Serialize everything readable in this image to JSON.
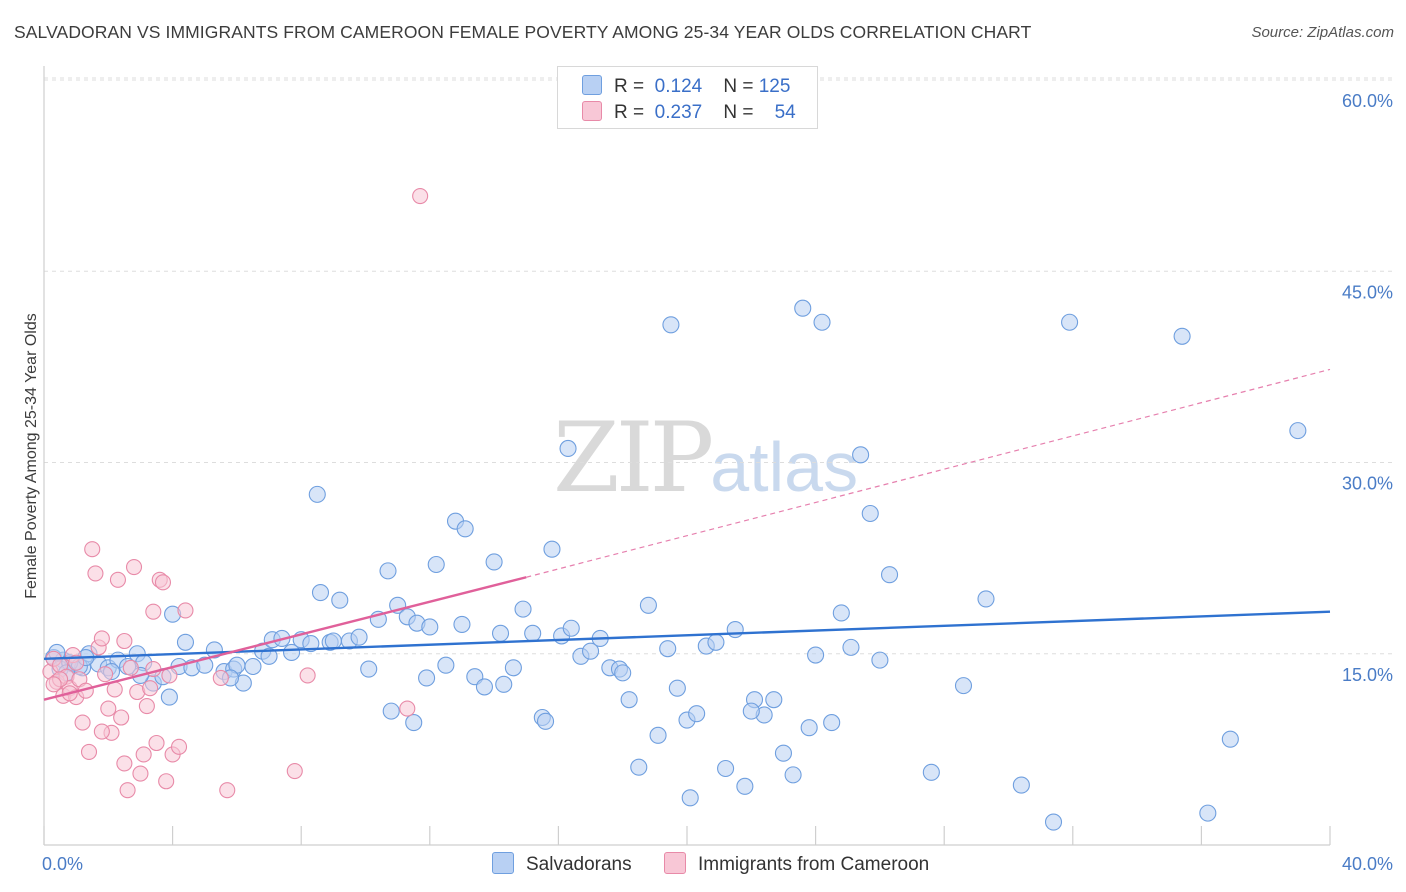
{
  "title": "SALVADORAN VS IMMIGRANTS FROM CAMEROON FEMALE POVERTY AMONG 25-34 YEAR OLDS CORRELATION CHART",
  "source": "Source: ZipAtlas.com",
  "watermark": {
    "zip": "ZIP",
    "atlas": "atlas"
  },
  "legend": {
    "r_label": "R =",
    "n_label": "N =",
    "rows": [
      {
        "r": "0.124",
        "n": "125"
      },
      {
        "r": "0.237",
        "n": "54"
      }
    ]
  },
  "bottom_legend": [
    {
      "label": "Salvadorans"
    },
    {
      "label": "Immigrants from Cameroon"
    }
  ],
  "colors": {
    "blue_fill": "#b8d0f3",
    "blue_stroke": "#6f9fdf",
    "blue_line": "#2f72d0",
    "pink_fill": "#f8c7d6",
    "pink_stroke": "#e88aa8",
    "pink_line": "#e0609a",
    "grid": "#dddddd",
    "axis": "#cfcfcf"
  },
  "chart_data": {
    "type": "scatter",
    "title": "SALVADORAN VS IMMIGRANTS FROM CAMEROON FEMALE POVERTY AMONG 25-34 YEAR OLDS CORRELATION CHART",
    "xlabel": "",
    "ylabel": "Female Poverty Among 25-34 Year Olds",
    "xlim": [
      0,
      40
    ],
    "ylim": [
      0,
      60
    ],
    "x_tick_labels": [
      "0.0%",
      "40.0%"
    ],
    "y_ticks": [
      15,
      30,
      45,
      60
    ],
    "y_tick_labels": [
      "15.0%",
      "30.0%",
      "45.0%",
      "60.0%"
    ],
    "grid": true,
    "series": [
      {
        "name": "Salvadorans",
        "R": 0.124,
        "N": 125,
        "trend": {
          "x0": 0,
          "y0": 14.6,
          "x1": 40,
          "y1": 18.3
        },
        "points": [
          [
            0.3,
            14.7
          ],
          [
            0.6,
            14.5
          ],
          [
            0.9,
            14.2
          ],
          [
            1.2,
            13.9
          ],
          [
            0.5,
            13.8
          ],
          [
            0.8,
            14.3
          ],
          [
            1.1,
            14.0
          ],
          [
            1.4,
            15.0
          ],
          [
            1.7,
            14.2
          ],
          [
            2.0,
            13.9
          ],
          [
            2.3,
            14.5
          ],
          [
            2.6,
            14.0
          ],
          [
            2.9,
            15.0
          ],
          [
            3.1,
            14.3
          ],
          [
            3.4,
            12.7
          ],
          [
            3.7,
            13.2
          ],
          [
            3.9,
            11.6
          ],
          [
            4.2,
            14.0
          ],
          [
            4.6,
            13.9
          ],
          [
            4.4,
            15.9
          ],
          [
            5.0,
            14.1
          ],
          [
            5.3,
            15.3
          ],
          [
            5.6,
            13.6
          ],
          [
            5.9,
            13.8
          ],
          [
            6.2,
            12.7
          ],
          [
            6.5,
            14.0
          ],
          [
            6.8,
            15.2
          ],
          [
            7.1,
            16.1
          ],
          [
            7.4,
            16.2
          ],
          [
            7.7,
            15.1
          ],
          [
            8.0,
            16.1
          ],
          [
            8.3,
            15.8
          ],
          [
            8.6,
            19.8
          ],
          [
            8.9,
            15.9
          ],
          [
            9.2,
            19.2
          ],
          [
            9.5,
            16.0
          ],
          [
            9.8,
            16.3
          ],
          [
            10.1,
            13.8
          ],
          [
            10.4,
            17.7
          ],
          [
            10.7,
            21.5
          ],
          [
            11.0,
            18.8
          ],
          [
            11.3,
            17.9
          ],
          [
            11.6,
            17.4
          ],
          [
            11.9,
            13.1
          ],
          [
            12.2,
            22.0
          ],
          [
            12.5,
            14.1
          ],
          [
            12.8,
            25.4
          ],
          [
            13.1,
            24.8
          ],
          [
            13.4,
            13.2
          ],
          [
            13.7,
            12.4
          ],
          [
            14.0,
            22.2
          ],
          [
            14.3,
            12.6
          ],
          [
            14.6,
            13.9
          ],
          [
            14.9,
            18.5
          ],
          [
            15.2,
            16.6
          ],
          [
            15.5,
            10.0
          ],
          [
            15.8,
            23.2
          ],
          [
            16.1,
            16.4
          ],
          [
            16.4,
            17.0
          ],
          [
            16.7,
            14.8
          ],
          [
            17.0,
            15.2
          ],
          [
            17.3,
            16.2
          ],
          [
            17.6,
            13.9
          ],
          [
            17.9,
            13.8
          ],
          [
            18.2,
            11.4
          ],
          [
            18.5,
            6.1
          ],
          [
            18.8,
            18.8
          ],
          [
            19.1,
            8.6
          ],
          [
            19.4,
            15.4
          ],
          [
            19.7,
            12.3
          ],
          [
            20.0,
            9.8
          ],
          [
            20.3,
            10.3
          ],
          [
            20.6,
            15.6
          ],
          [
            20.9,
            15.9
          ],
          [
            21.2,
            6.0
          ],
          [
            21.5,
            16.9
          ],
          [
            21.8,
            4.6
          ],
          [
            22.1,
            11.4
          ],
          [
            22.4,
            10.2
          ],
          [
            22.7,
            11.4
          ],
          [
            23.0,
            7.2
          ],
          [
            23.3,
            5.5
          ],
          [
            23.6,
            42.1
          ],
          [
            24.2,
            41.0
          ],
          [
            24.0,
            14.9
          ],
          [
            24.5,
            9.6
          ],
          [
            24.8,
            18.2
          ],
          [
            25.1,
            15.5
          ],
          [
            25.4,
            30.6
          ],
          [
            25.7,
            26.0
          ],
          [
            26.0,
            14.5
          ],
          [
            26.3,
            21.2
          ],
          [
            27.6,
            5.7
          ],
          [
            28.6,
            12.5
          ],
          [
            29.3,
            19.3
          ],
          [
            30.4,
            4.7
          ],
          [
            31.4,
            1.8
          ],
          [
            31.9,
            41.0
          ],
          [
            35.4,
            39.9
          ],
          [
            36.2,
            2.5
          ],
          [
            36.9,
            8.3
          ],
          [
            39.0,
            32.5
          ],
          [
            19.5,
            40.8
          ],
          [
            16.3,
            31.1
          ],
          [
            8.5,
            27.5
          ],
          [
            14.2,
            16.6
          ],
          [
            12.0,
            17.1
          ],
          [
            10.8,
            10.5
          ],
          [
            11.5,
            9.6
          ],
          [
            6.0,
            14.1
          ],
          [
            3.0,
            13.3
          ],
          [
            2.1,
            13.6
          ],
          [
            1.3,
            14.7
          ],
          [
            0.4,
            15.1
          ],
          [
            0.7,
            13.5
          ],
          [
            4.0,
            18.1
          ],
          [
            5.8,
            13.1
          ],
          [
            7.0,
            14.8
          ],
          [
            9.0,
            16.0
          ],
          [
            13.0,
            17.3
          ],
          [
            15.6,
            9.7
          ],
          [
            20.1,
            3.7
          ],
          [
            22.0,
            10.5
          ],
          [
            23.8,
            9.2
          ],
          [
            18.0,
            13.5
          ]
        ]
      },
      {
        "name": "Immigrants from Cameroon",
        "R": 0.237,
        "N": 54,
        "trend": {
          "x0": 0,
          "y0": 11.4,
          "x1": 15,
          "y1": 21.0
        },
        "trend_extended": {
          "x0": 15,
          "y0": 21.0,
          "x1": 40,
          "y1": 37.3
        },
        "points": [
          [
            0.2,
            13.6
          ],
          [
            0.3,
            14.6
          ],
          [
            0.4,
            12.8
          ],
          [
            0.5,
            14.1
          ],
          [
            0.6,
            11.7
          ],
          [
            0.7,
            13.2
          ],
          [
            0.8,
            12.3
          ],
          [
            0.9,
            14.9
          ],
          [
            1.0,
            11.6
          ],
          [
            1.1,
            13.0
          ],
          [
            1.2,
            9.6
          ],
          [
            1.3,
            12.1
          ],
          [
            1.4,
            7.3
          ],
          [
            1.5,
            23.2
          ],
          [
            1.6,
            21.3
          ],
          [
            1.7,
            15.5
          ],
          [
            1.8,
            16.2
          ],
          [
            1.9,
            13.4
          ],
          [
            2.0,
            10.7
          ],
          [
            2.1,
            8.8
          ],
          [
            2.2,
            12.2
          ],
          [
            2.3,
            20.8
          ],
          [
            2.4,
            10.0
          ],
          [
            2.5,
            6.4
          ],
          [
            2.6,
            4.3
          ],
          [
            2.7,
            13.9
          ],
          [
            2.8,
            21.8
          ],
          [
            2.9,
            12.0
          ],
          [
            3.0,
            5.6
          ],
          [
            3.1,
            7.1
          ],
          [
            3.2,
            10.9
          ],
          [
            3.3,
            12.3
          ],
          [
            3.4,
            18.3
          ],
          [
            3.5,
            8.0
          ],
          [
            3.6,
            20.8
          ],
          [
            3.7,
            20.6
          ],
          [
            3.8,
            5.0
          ],
          [
            3.9,
            13.3
          ],
          [
            4.0,
            7.1
          ],
          [
            4.2,
            7.7
          ],
          [
            4.4,
            18.4
          ],
          [
            5.5,
            13.1
          ],
          [
            5.7,
            4.3
          ],
          [
            7.8,
            5.8
          ],
          [
            8.2,
            13.3
          ],
          [
            11.3,
            10.7
          ],
          [
            11.7,
            50.9
          ],
          [
            0.5,
            13.0
          ],
          [
            1.0,
            14.3
          ],
          [
            0.3,
            12.6
          ],
          [
            2.5,
            16.0
          ],
          [
            1.8,
            8.9
          ],
          [
            3.4,
            13.8
          ],
          [
            0.8,
            11.9
          ]
        ]
      }
    ]
  }
}
